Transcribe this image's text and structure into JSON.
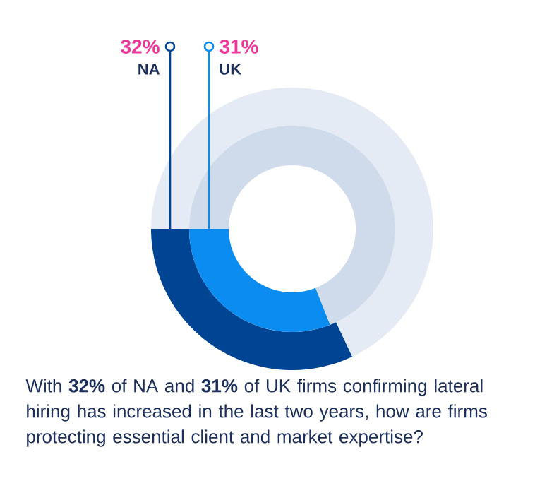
{
  "chart_data": [
    {
      "type": "donut",
      "title": "With **32%** of NA and **31%** of UK firms confirming lateral hiring has increased in the last two years, how are firms protecting essential client and market expertise?",
      "categories": [
        "NA",
        null
      ],
      "values": [
        32,
        68
      ],
      "colors": [
        "#004494",
        "#e4ebf5"
      ],
      "value_labels": [
        "32%",
        null
      ]
    },
    {
      "type": "donut",
      "categories": [
        "UK",
        null
      ],
      "values": [
        31,
        69
      ],
      "colors": [
        "#0a8cf0",
        "#cfdbea"
      ],
      "value_labels": [
        "31%",
        null
      ]
    }
  ]
}
